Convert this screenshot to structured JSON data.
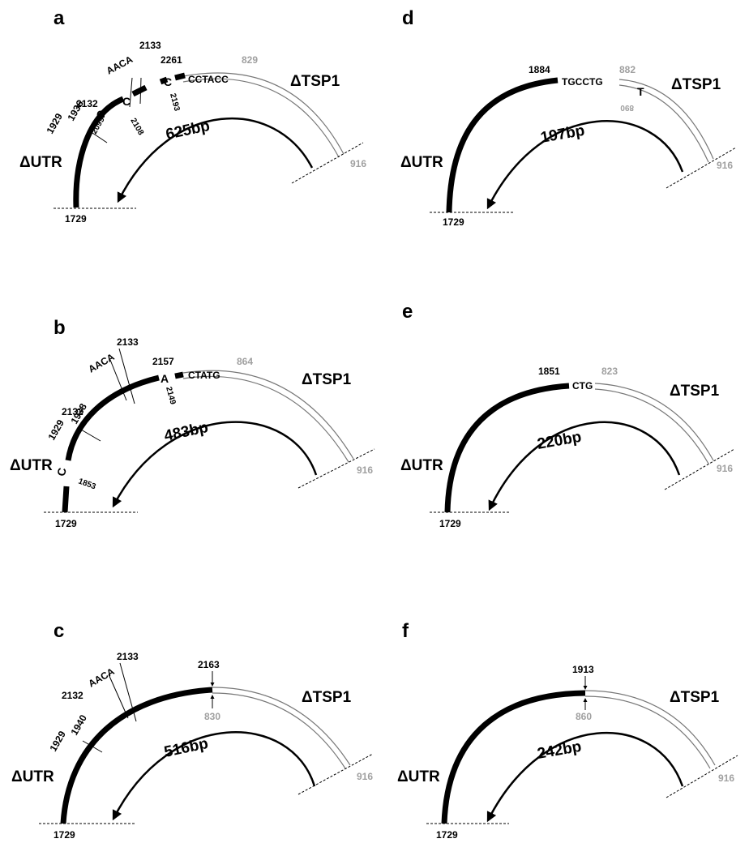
{
  "panels": {
    "a": {
      "letter": "a",
      "utr": "ΔUTR",
      "tsp": "ΔTSP1",
      "size": "625bp",
      "utr_start": "1729",
      "tsp_end": "916",
      "m1929": "1929",
      "m1936": "1936",
      "m2132": "2132",
      "m2133": "2133",
      "m2261": "2261",
      "motif": "AACA",
      "g": "G",
      "g_pos": "2099",
      "c1": "C",
      "c1_pos": "2108",
      "c2": "C",
      "c2_pos": "2193",
      "junction_seq": "CCTACC",
      "tsp_start": "829"
    },
    "b": {
      "letter": "b",
      "utr": "ΔUTR",
      "tsp": "ΔTSP1",
      "size": "483bp",
      "utr_start": "1729",
      "tsp_end": "916",
      "m1929": "1929",
      "m1938": "1938",
      "m2132": "2132",
      "m2133": "2133",
      "m2157": "2157",
      "motif": "AACA",
      "c": "C",
      "c_pos": "1853",
      "a": "A",
      "a_pos": "2149",
      "junction_seq": "CTATG",
      "tsp_start": "864"
    },
    "c": {
      "letter": "c",
      "utr": "ΔUTR",
      "tsp": "ΔTSP1",
      "size": "516bp",
      "utr_start": "1729",
      "tsp_end": "916",
      "m1929": "1929",
      "m1940": "1940",
      "m2132": "2132",
      "m2133": "2133",
      "motif": "AACA",
      "junction_utr": "2163",
      "tsp_start": "830"
    },
    "d": {
      "letter": "d",
      "utr": "ΔUTR",
      "tsp": "ΔTSP1",
      "size": "197bp",
      "utr_start": "1729",
      "tsp_end": "916",
      "junction_utr": "1884",
      "junction_seq": "TGCCTG",
      "tsp_start": "882",
      "t": "T",
      "t_pos": "890"
    },
    "e": {
      "letter": "e",
      "utr": "ΔUTR",
      "tsp": "ΔTSP1",
      "size": "220bp",
      "utr_start": "1729",
      "tsp_end": "916",
      "junction_utr": "1851",
      "junction_seq": "CTG",
      "tsp_start": "823"
    },
    "f": {
      "letter": "f",
      "utr": "ΔUTR",
      "tsp": "ΔTSP1",
      "size": "242bp",
      "utr_start": "1729",
      "tsp_end": "916",
      "junction_utr": "1913",
      "tsp_start": "860"
    }
  }
}
